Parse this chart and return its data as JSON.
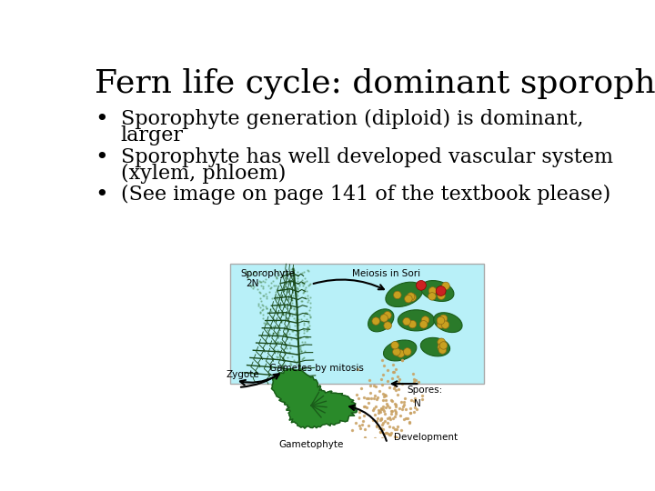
{
  "title": "Fern life cycle: dominant sporophyte",
  "bullet1_line1": "Sporophyte generation (diploid) is dominant,",
  "bullet1_line2": "larger",
  "bullet2_line1": "Sporophyte has well developed vascular system",
  "bullet2_line2": "(xylem, phloem)",
  "bullet3": "(See image on page 141 of the textbook please)",
  "bg_color": "#ffffff",
  "title_fontsize": 26,
  "bullet_fontsize": 16,
  "title_color": "#000000",
  "bullet_color": "#000000",
  "diagram_bg": "#b8f0f8",
  "dark_green": "#1a4a1a",
  "leaf_green": "#2a7a2a",
  "gam_green": "#2a8a2a",
  "sori_yellow": "#c8a020",
  "red_dot": "#cc2222",
  "spore_tan": "#c8a060"
}
